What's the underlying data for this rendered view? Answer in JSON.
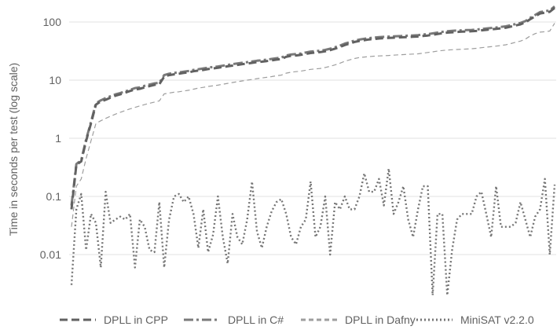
{
  "chart_data": {
    "type": "line",
    "title": "",
    "xlabel": "",
    "ylabel": "Time in seconds per test (log scale)",
    "scale": "log",
    "ylim": [
      0.001,
      200
    ],
    "y_ticks": [
      {
        "value": 100,
        "label": "100"
      },
      {
        "value": 10,
        "label": "10"
      },
      {
        "value": 1,
        "label": "1"
      },
      {
        "value": 0.1,
        "label": "0.1"
      },
      {
        "value": 0.01,
        "label": "0.01"
      }
    ],
    "grid": true,
    "legend_position": "bottom",
    "n_points": 100,
    "series": [
      {
        "name": "DPLL in CPP",
        "color": "#616161",
        "style": "dashed-thick",
        "values": [
          0.06,
          0.35,
          0.4,
          0.9,
          1.8,
          3.8,
          4.3,
          4.6,
          5.0,
          5.4,
          5.7,
          6.1,
          6.5,
          6.9,
          7.1,
          7.5,
          7.9,
          8.3,
          8.5,
          11.5,
          12.2,
          12.6,
          12.9,
          13.3,
          13.6,
          14.2,
          14.6,
          15.0,
          15.5,
          15.9,
          16.3,
          16.8,
          17.3,
          17.8,
          18.3,
          18.8,
          19.3,
          19.8,
          20.4,
          20.8,
          21.3,
          21.9,
          22.5,
          23.1,
          25.2,
          26.2,
          26.6,
          27.2,
          28.3,
          29.3,
          29.8,
          30.4,
          31.3,
          32.8,
          34.8,
          37.2,
          40.2,
          42.6,
          45.3,
          47.2,
          48.7,
          50.1,
          51.1,
          52.1,
          52.6,
          53.1,
          53.6,
          54.1,
          54.6,
          55.1,
          55.7,
          56.3,
          57.5,
          58.6,
          60.2,
          62.2,
          64.1,
          65.6,
          66.6,
          67.6,
          68.2,
          68.7,
          69.2,
          70.2,
          71.8,
          73.2,
          74.8,
          76.2,
          77.8,
          79.8,
          83.2,
          87.2,
          91.2,
          98,
          112,
          125,
          140,
          145,
          150,
          175
        ]
      },
      {
        "name": "DPLL in C#",
        "color": "#7a7a7a",
        "style": "dashdot",
        "values": [
          0.07,
          0.36,
          0.42,
          0.95,
          1.9,
          4.0,
          4.5,
          4.9,
          5.3,
          5.7,
          6.0,
          6.4,
          6.8,
          7.3,
          7.5,
          8.0,
          8.4,
          8.8,
          9.0,
          12.2,
          12.9,
          13.3,
          13.6,
          14.0,
          14.4,
          15.0,
          15.4,
          15.9,
          16.4,
          16.8,
          17.2,
          17.7,
          18.3,
          18.8,
          19.4,
          19.9,
          20.4,
          21.0,
          21.6,
          22.0,
          22.5,
          23.2,
          23.8,
          24.4,
          26.6,
          27.6,
          28.1,
          28.7,
          29.9,
          31.0,
          31.5,
          32.1,
          33.1,
          34.7,
          36.8,
          39.3,
          42.5,
          45.0,
          47.8,
          49.8,
          51.4,
          52.9,
          54.0,
          55.0,
          55.6,
          56.1,
          56.6,
          57.2,
          57.7,
          58.2,
          58.8,
          59.5,
          60.7,
          61.9,
          63.6,
          65.7,
          67.7,
          69.3,
          70.4,
          71.4,
          72.0,
          72.6,
          73.1,
          74.2,
          75.8,
          77.3,
          79.0,
          80.5,
          82.2,
          84.3,
          87.9,
          92.1,
          96.3,
          103.5,
          118,
          132,
          148,
          153,
          158,
          185
        ]
      },
      {
        "name": "DPLL in Dafny",
        "color": "#9e9e9e",
        "style": "dashed-thin",
        "values": [
          0.03,
          0.15,
          0.2,
          0.45,
          0.9,
          1.8,
          2.0,
          2.2,
          2.4,
          2.6,
          2.8,
          3.0,
          3.2,
          3.4,
          3.6,
          3.8,
          4.0,
          4.2,
          4.4,
          5.8,
          6.0,
          6.2,
          6.3,
          6.5,
          6.7,
          7.0,
          7.3,
          7.5,
          7.8,
          8.0,
          8.2,
          8.5,
          8.8,
          9.1,
          9.4,
          9.7,
          10.0,
          10.3,
          10.6,
          10.9,
          11.2,
          11.5,
          11.9,
          12.2,
          13.2,
          13.7,
          14.0,
          14.3,
          14.8,
          15.3,
          15.6,
          15.9,
          16.5,
          17.3,
          18.3,
          19.6,
          21.1,
          22.3,
          23.5,
          24.5,
          25.0,
          25.4,
          25.8,
          26.1,
          26.3,
          26.6,
          26.9,
          27.2,
          27.5,
          27.8,
          28.1,
          28.4,
          29.1,
          29.9,
          30.7,
          31.6,
          32.3,
          32.9,
          33.3,
          33.7,
          34.0,
          34.3,
          34.7,
          35.3,
          36.1,
          36.9,
          37.7,
          38.5,
          39.5,
          40.6,
          42.5,
          44.8,
          47.0,
          50.8,
          57.5,
          63,
          67,
          68,
          70,
          95
        ]
      },
      {
        "name": "MiniSAT v2.2.0",
        "color": "#757575",
        "style": "dotted",
        "values": [
          0.003,
          0.06,
          0.11,
          0.012,
          0.05,
          0.035,
          0.006,
          0.12,
          0.035,
          0.04,
          0.045,
          0.04,
          0.05,
          0.006,
          0.04,
          0.03,
          0.012,
          0.011,
          0.08,
          0.006,
          0.04,
          0.1,
          0.11,
          0.08,
          0.1,
          0.05,
          0.013,
          0.06,
          0.011,
          0.022,
          0.1,
          0.02,
          0.007,
          0.05,
          0.02,
          0.015,
          0.04,
          0.18,
          0.025,
          0.013,
          0.03,
          0.055,
          0.08,
          0.09,
          0.05,
          0.02,
          0.015,
          0.03,
          0.04,
          0.18,
          0.02,
          0.03,
          0.1,
          0.01,
          0.08,
          0.06,
          0.1,
          0.06,
          0.06,
          0.1,
          0.25,
          0.12,
          0.12,
          0.2,
          0.07,
          0.3,
          0.05,
          0.08,
          0.15,
          0.04,
          0.02,
          0.06,
          0.15,
          0.15,
          0.002,
          0.05,
          0.05,
          0.002,
          0.012,
          0.04,
          0.05,
          0.05,
          0.05,
          0.1,
          0.12,
          0.05,
          0.02,
          0.15,
          0.03,
          0.03,
          0.03,
          0.035,
          0.08,
          0.04,
          0.02,
          0.045,
          0.06,
          0.2,
          0.01,
          0.16
        ]
      }
    ]
  }
}
